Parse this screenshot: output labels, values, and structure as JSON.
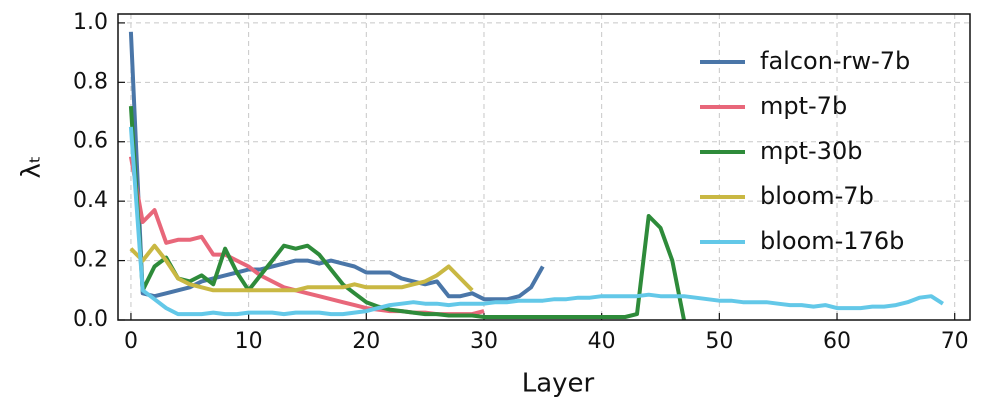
{
  "chart_data": {
    "type": "line",
    "xlabel": "Layer",
    "ylabel": "λₜ",
    "x": [
      0,
      1,
      2,
      3,
      4,
      5,
      6,
      7,
      8,
      9,
      10,
      11,
      12,
      13,
      14,
      15,
      16,
      17,
      18,
      19,
      20,
      21,
      22,
      23,
      24,
      25,
      26,
      27,
      28,
      29,
      30,
      31,
      32,
      33,
      34,
      35,
      36,
      37,
      38,
      39,
      40,
      41,
      42,
      43,
      44,
      45,
      46,
      47,
      48,
      49,
      50,
      51,
      52,
      53,
      54,
      55,
      56,
      57,
      58,
      59,
      60,
      61,
      62,
      63,
      64,
      65,
      66,
      67,
      68,
      69
    ],
    "series": [
      {
        "name": "falcon-rw-7b",
        "color": "#4a76a8",
        "values": [
          0.97,
          0.09,
          0.08,
          0.09,
          0.1,
          0.11,
          0.13,
          0.14,
          0.15,
          0.16,
          0.17,
          0.17,
          0.18,
          0.19,
          0.2,
          0.2,
          0.19,
          0.2,
          0.19,
          0.18,
          0.16,
          0.16,
          0.16,
          0.14,
          0.13,
          0.12,
          0.13,
          0.08,
          0.08,
          0.09,
          0.07,
          0.07,
          0.07,
          0.08,
          0.11,
          0.18,
          null,
          null,
          null,
          null,
          null,
          null,
          null,
          null,
          null,
          null,
          null,
          null,
          null,
          null,
          null,
          null,
          null,
          null,
          null,
          null,
          null,
          null,
          null,
          null,
          null,
          null,
          null,
          null,
          null,
          null,
          null,
          null,
          null,
          null
        ]
      },
      {
        "name": "mpt-7b",
        "color": "#e8677a",
        "values": [
          0.55,
          0.33,
          0.37,
          0.26,
          0.27,
          0.27,
          0.28,
          0.22,
          0.22,
          0.2,
          0.18,
          0.15,
          0.13,
          0.11,
          0.1,
          0.09,
          0.08,
          0.07,
          0.06,
          0.05,
          0.04,
          0.035,
          0.03,
          0.03,
          0.025,
          0.025,
          0.02,
          0.02,
          0.02,
          0.02,
          0.03,
          null,
          null,
          null,
          null,
          null,
          null,
          null,
          null,
          null,
          null,
          null,
          null,
          null,
          null,
          null,
          null,
          null,
          null,
          null,
          null,
          null,
          null,
          null,
          null,
          null,
          null,
          null,
          null,
          null,
          null,
          null,
          null,
          null,
          null,
          null,
          null,
          null,
          null,
          null
        ]
      },
      {
        "name": "mpt-30b",
        "color": "#2e8b3a",
        "values": [
          0.72,
          0.1,
          0.18,
          0.21,
          0.14,
          0.13,
          0.15,
          0.12,
          0.24,
          0.16,
          0.1,
          0.15,
          0.2,
          0.25,
          0.24,
          0.25,
          0.22,
          0.17,
          0.12,
          0.09,
          0.06,
          0.045,
          0.035,
          0.03,
          0.025,
          0.02,
          0.02,
          0.015,
          0.015,
          0.015,
          0.01,
          0.01,
          0.01,
          0.01,
          0.01,
          0.01,
          0.01,
          0.01,
          0.01,
          0.01,
          0.01,
          0.01,
          0.01,
          0.02,
          0.35,
          0.31,
          0.2,
          0.0,
          null,
          null,
          null,
          null,
          null,
          null,
          null,
          null,
          null,
          null,
          null,
          null,
          null,
          null,
          null,
          null,
          null,
          null,
          null,
          null,
          null,
          null
        ]
      },
      {
        "name": "bloom-7b",
        "color": "#c9b843",
        "values": [
          0.24,
          0.2,
          0.25,
          0.2,
          0.14,
          0.12,
          0.11,
          0.1,
          0.1,
          0.1,
          0.1,
          0.1,
          0.1,
          0.1,
          0.1,
          0.11,
          0.11,
          0.11,
          0.11,
          0.12,
          0.11,
          0.11,
          0.11,
          0.11,
          0.12,
          0.13,
          0.15,
          0.18,
          0.14,
          0.1,
          null,
          null,
          null,
          null,
          null,
          null,
          null,
          null,
          null,
          null,
          null,
          null,
          null,
          null,
          null,
          null,
          null,
          null,
          null,
          null,
          null,
          null,
          null,
          null,
          null,
          null,
          null,
          null,
          null,
          null,
          null,
          null,
          null,
          null,
          null,
          null,
          null,
          null,
          null,
          null
        ]
      },
      {
        "name": "bloom-176b",
        "color": "#63c8e8",
        "values": [
          0.65,
          0.1,
          0.07,
          0.04,
          0.02,
          0.02,
          0.02,
          0.025,
          0.02,
          0.02,
          0.025,
          0.025,
          0.025,
          0.02,
          0.025,
          0.025,
          0.025,
          0.02,
          0.02,
          0.025,
          0.03,
          0.04,
          0.05,
          0.055,
          0.06,
          0.055,
          0.055,
          0.05,
          0.055,
          0.055,
          0.055,
          0.06,
          0.06,
          0.065,
          0.065,
          0.065,
          0.07,
          0.07,
          0.075,
          0.075,
          0.08,
          0.08,
          0.08,
          0.08,
          0.085,
          0.08,
          0.08,
          0.08,
          0.075,
          0.07,
          0.065,
          0.065,
          0.06,
          0.06,
          0.06,
          0.055,
          0.05,
          0.05,
          0.045,
          0.05,
          0.04,
          0.04,
          0.04,
          0.045,
          0.045,
          0.05,
          0.06,
          0.075,
          0.08,
          0.055
        ]
      }
    ],
    "xlim": [
      -1.1,
      71.3
    ],
    "ylim": [
      0,
      1.03
    ],
    "xticks": [
      0,
      10,
      20,
      30,
      40,
      50,
      60,
      70
    ],
    "yticks": [
      {
        "value": 0,
        "label": "0.0"
      },
      {
        "value": 0.2,
        "label": "0.2"
      },
      {
        "value": 0.4,
        "label": "0.4"
      },
      {
        "value": 0.6,
        "label": "0.6"
      },
      {
        "value": 0.8,
        "label": "0.8"
      },
      {
        "value": 1,
        "label": "1.0"
      }
    ],
    "grid": true,
    "legend": "upper right"
  }
}
